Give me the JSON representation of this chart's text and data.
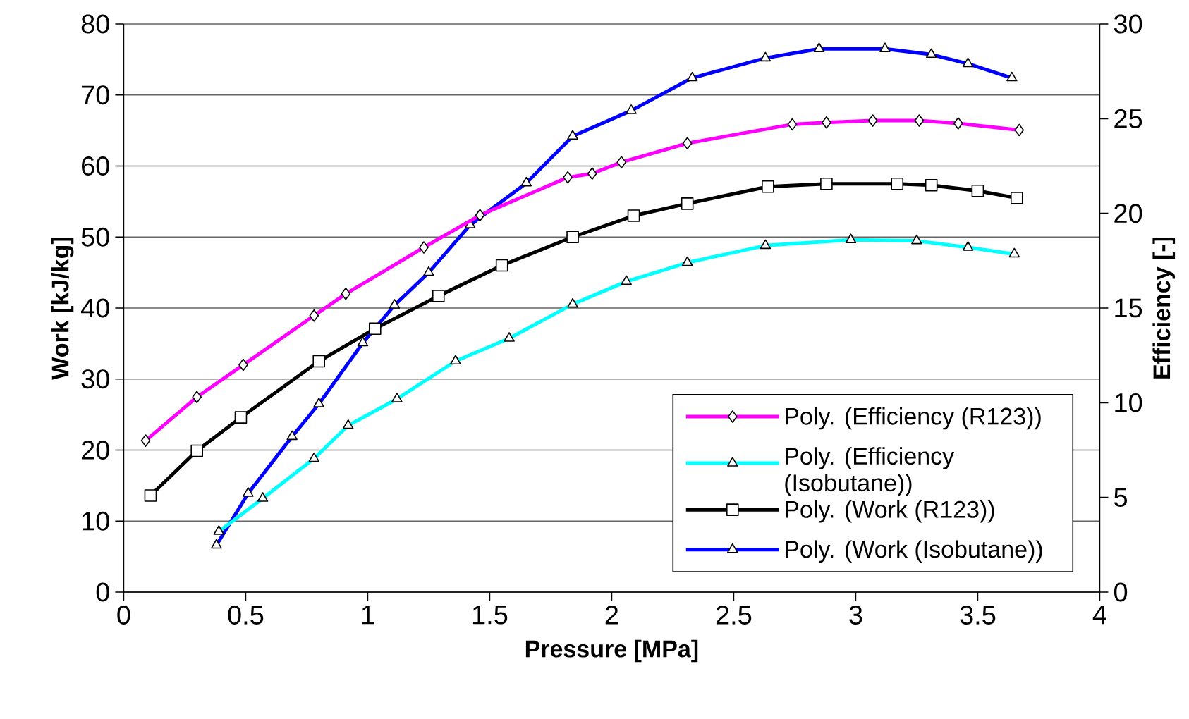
{
  "chart_data": {
    "type": "line",
    "xlabel": "Pressure [MPa]",
    "ylabel": "Work [kJ/kg]",
    "y2label": "Efficiency [-]",
    "xlim": [
      0,
      4
    ],
    "xticks": [
      0,
      0.5,
      1,
      1.5,
      2,
      2.5,
      3,
      3.5,
      4
    ],
    "ylim": [
      0,
      80
    ],
    "yticks": [
      0,
      10,
      20,
      30,
      40,
      50,
      60,
      70,
      80
    ],
    "y2lim": [
      0,
      30
    ],
    "y2ticks": [
      0,
      5,
      10,
      15,
      20,
      25,
      30
    ],
    "grid": "y",
    "legend": "bottom right",
    "line_style": "solid",
    "series": [
      {
        "name": "Poly. (Efficiency (R123))",
        "color": "#ff00ff",
        "axis": "y2",
        "marker": "diamond",
        "x": [
          0.09,
          0.3,
          0.49,
          0.78,
          0.91,
          1.23,
          1.46,
          1.82,
          1.92,
          2.04,
          2.31,
          2.74,
          2.88,
          3.07,
          3.26,
          3.42,
          3.67
        ],
        "values": [
          8.0,
          10.3,
          12.0,
          14.6,
          15.75,
          18.2,
          19.9,
          21.9,
          22.1,
          22.7,
          23.7,
          24.7,
          24.8,
          24.9,
          24.9,
          24.75,
          24.4
        ]
      },
      {
        "name": "Poly. (Efficiency (Isobutane))",
        "color": "#00ffff",
        "axis": "y2",
        "marker": "triangle",
        "x": [
          0.39,
          0.57,
          0.78,
          0.92,
          1.12,
          1.36,
          1.58,
          1.84,
          2.06,
          2.31,
          2.63,
          2.98,
          3.25,
          3.46,
          3.65
        ],
        "values": [
          3.2,
          4.95,
          7.05,
          8.8,
          10.2,
          12.2,
          13.4,
          15.2,
          16.4,
          17.4,
          18.3,
          18.6,
          18.55,
          18.2,
          17.85
        ]
      },
      {
        "name": "Poly. (Work (R123))",
        "color": "#000000",
        "axis": "y",
        "marker": "square",
        "x": [
          0.11,
          0.3,
          0.48,
          0.8,
          1.03,
          1.29,
          1.55,
          1.84,
          2.09,
          2.31,
          2.64,
          2.88,
          3.17,
          3.31,
          3.5,
          3.66
        ],
        "values": [
          13.6,
          19.9,
          24.6,
          32.5,
          37.1,
          41.7,
          46.0,
          50.0,
          53.0,
          54.7,
          57.1,
          57.5,
          57.5,
          57.3,
          56.5,
          55.5
        ]
      },
      {
        "name": "Poly. (Work (Isobutane))",
        "color": "#0000ff",
        "axis": "y",
        "marker": "triangle",
        "x": [
          0.38,
          0.51,
          0.69,
          0.8,
          0.98,
          1.11,
          1.25,
          1.42,
          1.65,
          1.84,
          2.08,
          2.33,
          2.63,
          2.85,
          3.12,
          3.31,
          3.46,
          3.64
        ],
        "values": [
          6.6,
          13.9,
          21.9,
          26.5,
          35.1,
          40.4,
          45.0,
          51.7,
          57.6,
          64.2,
          67.8,
          72.4,
          75.2,
          76.5,
          76.5,
          75.7,
          74.4,
          72.4
        ]
      }
    ]
  }
}
